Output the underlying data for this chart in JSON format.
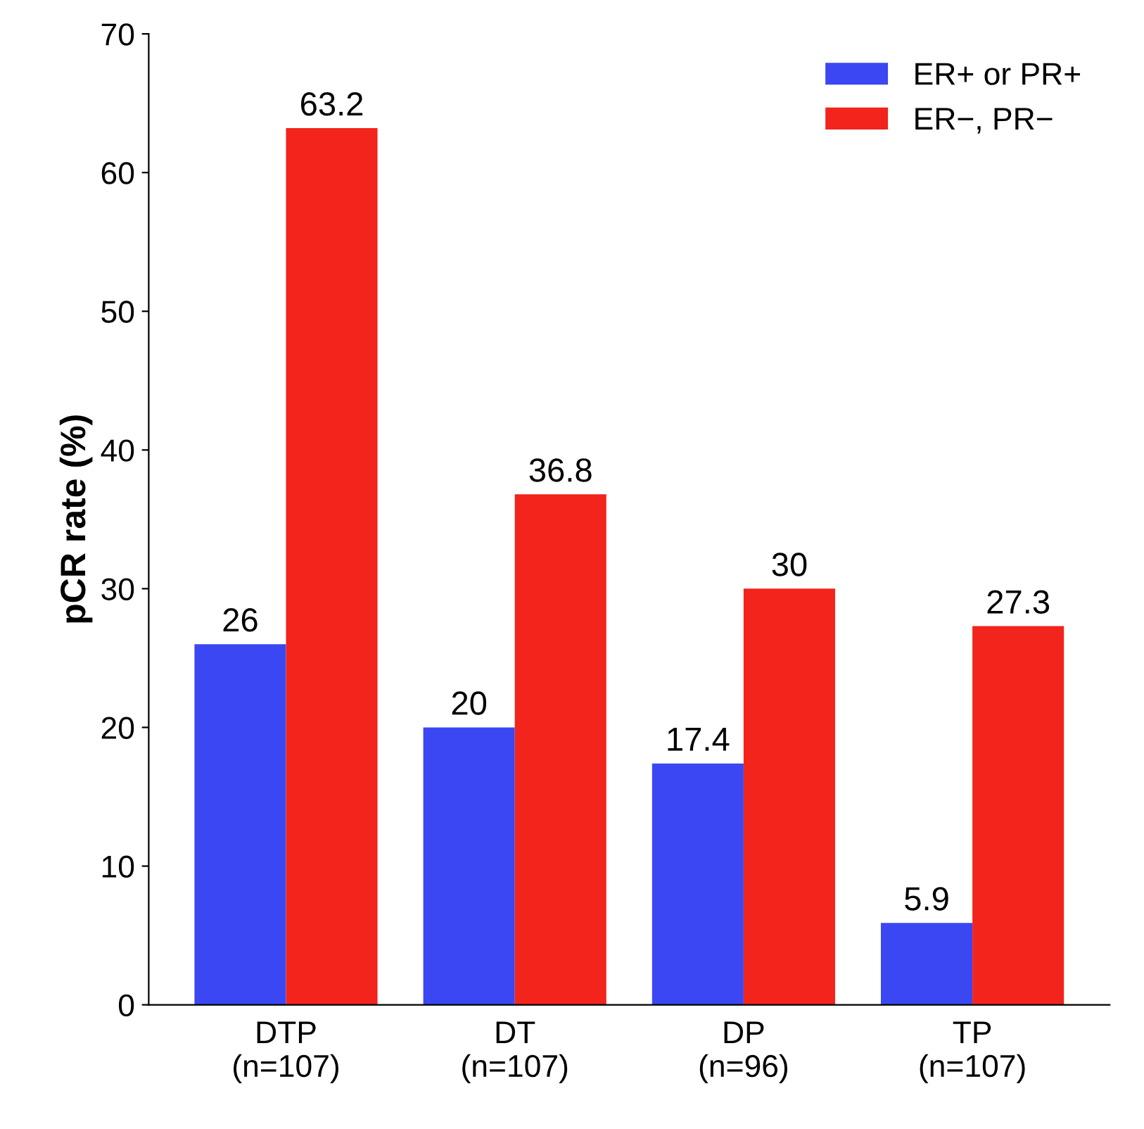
{
  "chart_data": {
    "type": "bar",
    "ylabel": "pCR rate (%)",
    "categories": [
      "DTP\n(n=107)",
      "DT\n(n=107)",
      "DP\n(n=96)",
      "TP\n(n=107)"
    ],
    "series": [
      {
        "name": "ER+ or PR+",
        "color": "#3a47f2",
        "values": [
          26,
          20,
          17.4,
          5.9
        ]
      },
      {
        "name": "ER−, PR−",
        "color": "#f2241b",
        "values": [
          63.2,
          36.8,
          30,
          27.3
        ]
      }
    ],
    "ylim": [
      0,
      70
    ],
    "yticks": [
      0,
      10,
      20,
      30,
      40,
      50,
      60,
      70
    ],
    "grid": false,
    "legend": "top right",
    "data_labels": true
  }
}
